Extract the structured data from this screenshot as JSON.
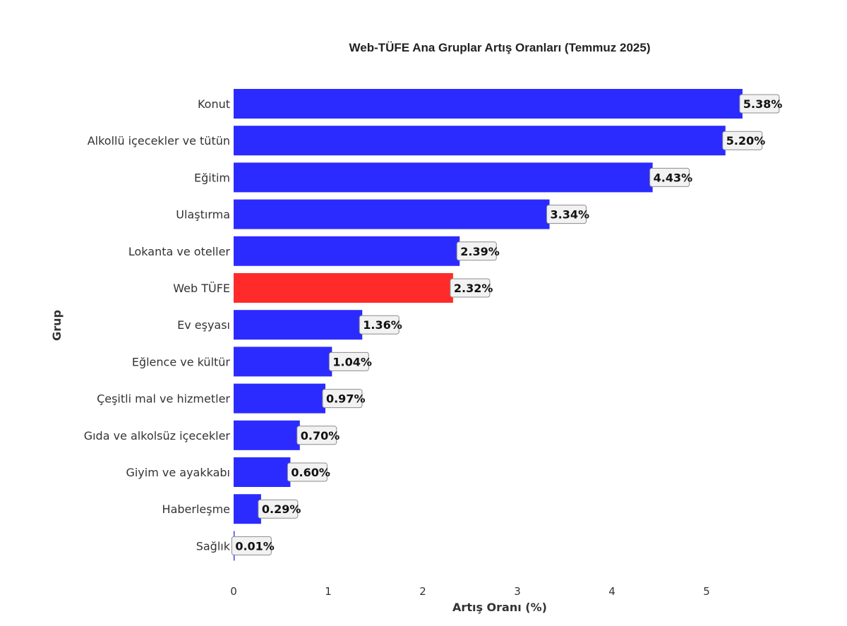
{
  "chart_data": {
    "type": "bar",
    "orientation": "horizontal",
    "title": "Web-TÜFE Ana Gruplar Artış Oranları (Temmuz 2025)",
    "xlabel": "Artış Oranı (%)",
    "ylabel": "Grup",
    "xlim": [
      0,
      5.5
    ],
    "xticks": [
      0,
      1,
      2,
      3,
      4,
      5
    ],
    "grid": false,
    "categories": [
      "Konut",
      "Alkollü içecekler ve tütün",
      "Eğitim",
      "Ulaştırma",
      "Lokanta ve oteller",
      "Web TÜFE",
      "Ev eşyası",
      "Eğlence ve kültür",
      "Çeşitli mal ve hizmetler",
      "Gıda ve alkolsüz içecekler",
      "Giyim ve ayakkabı",
      "Haberleşme",
      "Sağlık"
    ],
    "values": [
      5.38,
      5.2,
      4.43,
      3.34,
      2.39,
      2.32,
      1.36,
      1.04,
      0.97,
      0.7,
      0.6,
      0.29,
      0.01
    ],
    "value_labels": [
      "5.38%",
      "5.20%",
      "4.43%",
      "3.34%",
      "2.39%",
      "2.32%",
      "1.36%",
      "1.04%",
      "0.97%",
      "0.70%",
      "0.60%",
      "0.29%",
      "0.01%"
    ],
    "bar_color": "#2b2bff",
    "highlight_category": "Web TÜFE",
    "highlight_color": "#ff2b2b"
  }
}
